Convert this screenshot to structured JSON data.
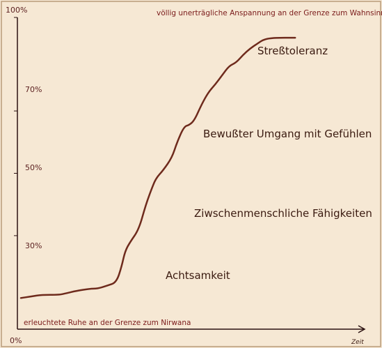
{
  "chart_data": {
    "type": "line",
    "xlabel": "Zeit",
    "ylabel": "",
    "yticks": [
      "0%",
      "30%",
      "50%",
      "70%",
      "100%"
    ],
    "ytick_values": [
      0,
      30,
      50,
      70,
      100
    ],
    "ylim": [
      0,
      100
    ],
    "xlim": [
      0,
      100
    ],
    "top_note": "völlig unerträgliche Anspannung an der Grenze zum Wahnsinn",
    "bottom_note": "erleuchtete Ruhe an der Grenze zum Nirwana",
    "zones": [
      {
        "label": "Streßtoleranz",
        "level": 93
      },
      {
        "label": "Bewußter Umgang mit Gefühlen",
        "level": 70
      },
      {
        "label": "Ziwschenmenschliche Fähigkeiten",
        "level": 44
      },
      {
        "label": "Achtsamkeit",
        "level": 21
      }
    ],
    "series": [
      {
        "color": "#6e2a1c",
        "points": [
          [
            1,
            10
          ],
          [
            4,
            10.5
          ],
          [
            7,
            11
          ],
          [
            12,
            11
          ],
          [
            14,
            11.5
          ],
          [
            17,
            12.3
          ],
          [
            21,
            13
          ],
          [
            23,
            13
          ],
          [
            26,
            14
          ],
          [
            28.5,
            15
          ],
          [
            30,
            20
          ],
          [
            31,
            25
          ],
          [
            32.5,
            28
          ],
          [
            35,
            32
          ],
          [
            37,
            40
          ],
          [
            39,
            46
          ],
          [
            40,
            48.5
          ],
          [
            42,
            51
          ],
          [
            44.5,
            55
          ],
          [
            46,
            60
          ],
          [
            48,
            65
          ],
          [
            49.5,
            65.5
          ],
          [
            51,
            67
          ],
          [
            53,
            72
          ],
          [
            55,
            76
          ],
          [
            57,
            78.5
          ],
          [
            59,
            81.5
          ],
          [
            61,
            84.5
          ],
          [
            63,
            85.5
          ],
          [
            65,
            88
          ],
          [
            67,
            90
          ],
          [
            69,
            91.5
          ],
          [
            71,
            93
          ],
          [
            74,
            93.5
          ],
          [
            80,
            93.5
          ]
        ]
      }
    ]
  }
}
